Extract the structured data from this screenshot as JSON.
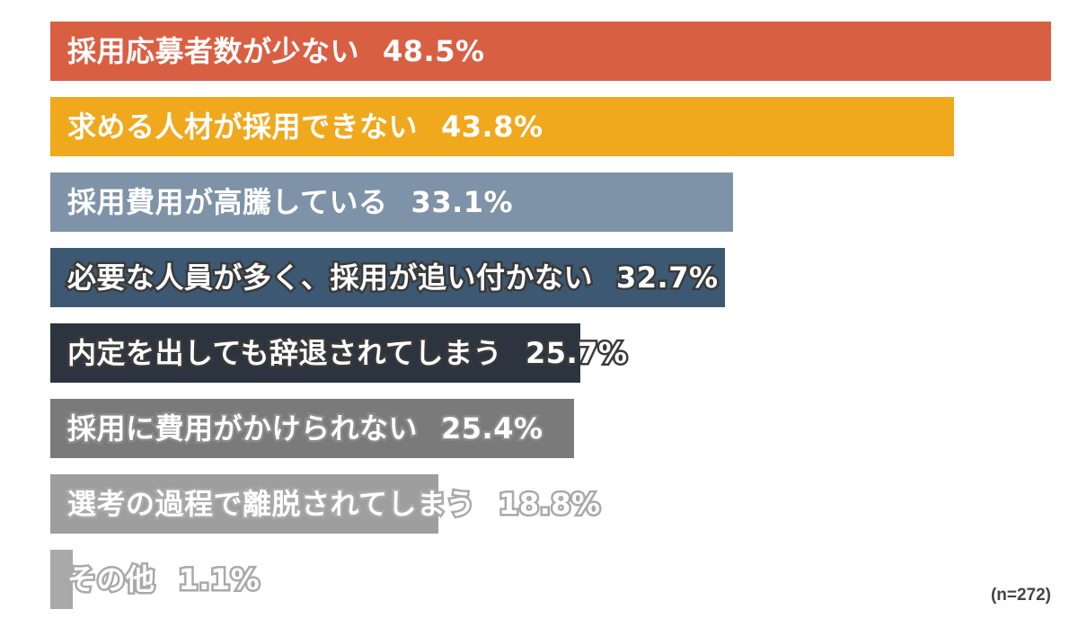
{
  "chart_data": {
    "type": "bar",
    "orientation": "horizontal",
    "categories": [
      "採用応募者数が少ない",
      "求める人材が採用できない",
      "採用費用が高騰している",
      "必要な人員が多く、採用が追い付かない",
      "内定を出しても辞退されてしまう",
      "採用に費用がかけられない",
      "選考の過程で離脱されてしまう",
      "その他"
    ],
    "values": [
      48.5,
      43.8,
      33.1,
      32.7,
      25.7,
      25.4,
      18.8,
      1.1
    ],
    "value_labels": [
      "48.5%",
      "43.8%",
      "33.1%",
      "32.7%",
      "25.7%",
      "25.4%",
      "18.8%",
      "1.1%"
    ],
    "colors": [
      "#d95f43",
      "#f0a81d",
      "#7e93a8",
      "#3d5872",
      "#2c3440",
      "#7a7a7a",
      "#9e9e9e",
      "#a9a9a9"
    ],
    "xlim": [
      0,
      48.5
    ],
    "grid": false,
    "legend": "none",
    "title": "",
    "xlabel": "",
    "ylabel": ""
  },
  "note": "(n=272)"
}
